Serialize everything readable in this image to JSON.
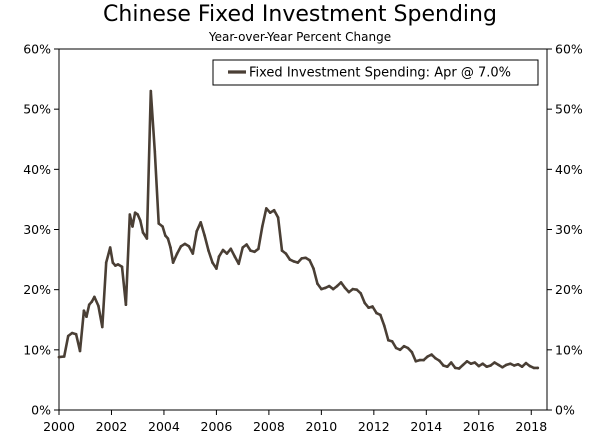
{
  "chart_data": {
    "type": "line",
    "title": "Chinese Fixed Investment Spending",
    "subtitle": "Year-over-Year Percent Change",
    "xlabel": "",
    "ylabel": "",
    "xlim": [
      2000,
      2018.6
    ],
    "ylim": [
      0,
      60
    ],
    "x_ticks": [
      2000,
      2002,
      2004,
      2006,
      2008,
      2010,
      2012,
      2014,
      2016,
      2018
    ],
    "y_ticks": [
      0,
      10,
      20,
      30,
      40,
      50,
      60
    ],
    "y_tick_suffix": "%",
    "grid": false,
    "legend_position": "top-right",
    "line_color": "#4a3f35",
    "series": [
      {
        "name": "Fixed Investment Spending: Apr @ 7.0%",
        "x": [
          2000.0,
          2000.2,
          2000.35,
          2000.5,
          2000.65,
          2000.8,
          2000.95,
          2001.05,
          2001.15,
          2001.25,
          2001.35,
          2001.5,
          2001.65,
          2001.8,
          2001.95,
          2002.05,
          2002.15,
          2002.25,
          2002.4,
          2002.55,
          2002.7,
          2002.8,
          2002.9,
          2003.0,
          2003.1,
          2003.2,
          2003.35,
          2003.5,
          2003.65,
          2003.8,
          2003.95,
          2004.05,
          2004.15,
          2004.25,
          2004.35,
          2004.5,
          2004.65,
          2004.8,
          2004.95,
          2005.1,
          2005.25,
          2005.4,
          2005.55,
          2005.7,
          2005.85,
          2006.0,
          2006.1,
          2006.25,
          2006.4,
          2006.55,
          2006.7,
          2006.85,
          2007.0,
          2007.15,
          2007.3,
          2007.45,
          2007.6,
          2007.75,
          2007.9,
          2008.05,
          2008.2,
          2008.35,
          2008.5,
          2008.65,
          2008.8,
          2008.95,
          2009.1,
          2009.25,
          2009.4,
          2009.55,
          2009.7,
          2009.85,
          2010.0,
          2010.15,
          2010.3,
          2010.45,
          2010.6,
          2010.75,
          2010.9,
          2011.05,
          2011.2,
          2011.35,
          2011.5,
          2011.65,
          2011.8,
          2011.95,
          2012.1,
          2012.25,
          2012.4,
          2012.55,
          2012.7,
          2012.85,
          2013.0,
          2013.15,
          2013.3,
          2013.45,
          2013.6,
          2013.75,
          2013.9,
          2014.05,
          2014.2,
          2014.35,
          2014.5,
          2014.65,
          2014.8,
          2014.95,
          2015.1,
          2015.25,
          2015.4,
          2015.55,
          2015.7,
          2015.85,
          2016.0,
          2016.15,
          2016.3,
          2016.45,
          2016.6,
          2016.75,
          2016.9,
          2017.05,
          2017.2,
          2017.35,
          2017.5,
          2017.65,
          2017.8,
          2017.95,
          2018.1,
          2018.25
        ],
        "values": [
          8.8,
          8.9,
          12.3,
          12.8,
          12.6,
          9.8,
          16.5,
          15.5,
          17.5,
          18.0,
          18.8,
          17.3,
          13.8,
          24.5,
          27.0,
          24.5,
          24.0,
          24.2,
          23.8,
          17.5,
          32.5,
          30.5,
          32.8,
          32.5,
          31.5,
          29.5,
          28.5,
          53.0,
          43.0,
          31.0,
          30.5,
          29.0,
          28.5,
          27.0,
          24.5,
          26.0,
          27.2,
          27.6,
          27.2,
          26.0,
          29.7,
          31.2,
          29.0,
          26.5,
          24.5,
          23.5,
          25.5,
          26.6,
          26.0,
          26.8,
          25.5,
          24.3,
          27.0,
          27.5,
          26.5,
          26.3,
          26.8,
          30.5,
          33.5,
          32.8,
          33.2,
          32.0,
          26.5,
          26.0,
          25.0,
          24.7,
          24.5,
          25.2,
          25.3,
          24.9,
          23.5,
          21.0,
          20.1,
          20.3,
          20.6,
          20.1,
          20.6,
          21.2,
          20.3,
          19.6,
          20.1,
          20.0,
          19.4,
          17.8,
          17.0,
          17.2,
          16.1,
          15.8,
          14.0,
          11.6,
          11.4,
          10.3,
          10.0,
          10.6,
          10.3,
          9.6,
          8.1,
          8.3,
          8.3,
          8.9,
          9.2,
          8.6,
          8.2,
          7.4,
          7.2,
          7.9,
          7.0,
          6.9,
          7.5,
          8.1,
          7.7,
          7.9,
          7.3,
          7.7,
          7.2,
          7.4,
          7.9,
          7.5,
          7.1,
          7.5,
          7.7,
          7.4,
          7.6,
          7.2,
          7.8,
          7.3,
          7.0,
          7.0
        ]
      }
    ]
  }
}
